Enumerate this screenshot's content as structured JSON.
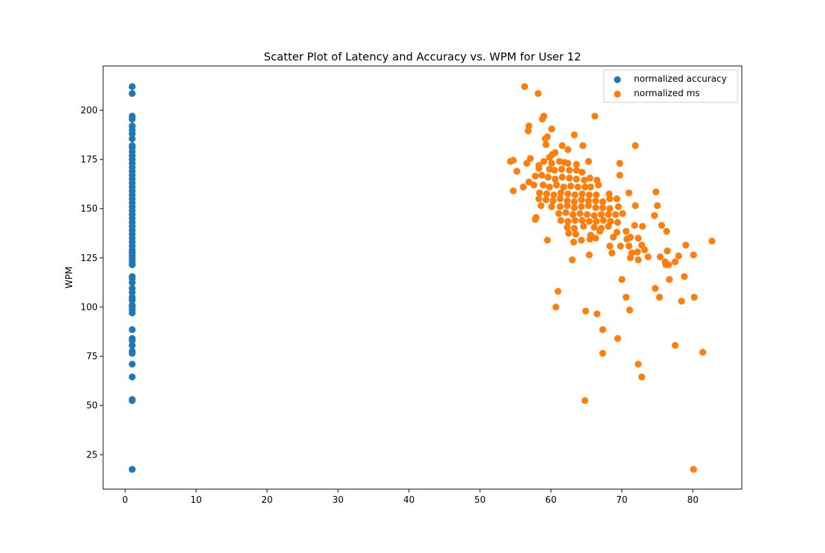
{
  "chart_data": {
    "type": "scatter",
    "title": "Scatter Plot of Latency and Accuracy vs. WPM for User 12",
    "xlabel": "",
    "ylabel": "WPM",
    "xlim": [
      -3.1,
      86.9
    ],
    "ylim": [
      7.5,
      222.5
    ],
    "xticks": [
      0,
      10,
      20,
      30,
      40,
      50,
      60,
      70,
      80
    ],
    "yticks": [
      25,
      50,
      75,
      100,
      125,
      150,
      175,
      200
    ],
    "grid": false,
    "legend_position": "top-right",
    "series": [
      {
        "name": "normalized accuracy",
        "color": "#1f77b4",
        "points": [
          [
            1,
            17.5
          ],
          [
            1,
            52.5
          ],
          [
            1,
            53
          ],
          [
            1,
            64.5
          ],
          [
            1,
            71
          ],
          [
            1,
            76.5
          ],
          [
            1,
            77.5
          ],
          [
            1,
            80.5
          ],
          [
            1,
            83
          ],
          [
            1,
            84
          ],
          [
            1,
            88.5
          ],
          [
            1,
            97
          ],
          [
            1,
            98.5
          ],
          [
            1,
            100
          ],
          [
            1,
            101
          ],
          [
            1,
            103.5
          ],
          [
            1,
            105
          ],
          [
            1,
            107.5
          ],
          [
            1,
            109.5
          ],
          [
            1,
            112.5
          ],
          [
            1,
            114.5
          ],
          [
            1,
            115.5
          ],
          [
            1,
            121.5
          ],
          [
            1,
            123
          ],
          [
            1,
            124.5
          ],
          [
            1,
            126
          ],
          [
            1,
            127.5
          ],
          [
            1,
            129
          ],
          [
            1,
            131
          ],
          [
            1,
            133
          ],
          [
            1,
            135
          ],
          [
            1,
            137
          ],
          [
            1,
            139
          ],
          [
            1,
            141
          ],
          [
            1,
            143
          ],
          [
            1,
            145
          ],
          [
            1,
            147
          ],
          [
            1,
            149
          ],
          [
            1,
            151
          ],
          [
            1,
            153
          ],
          [
            1,
            155
          ],
          [
            1,
            157
          ],
          [
            1,
            159
          ],
          [
            1,
            161
          ],
          [
            1,
            163
          ],
          [
            1,
            165
          ],
          [
            1,
            167
          ],
          [
            1,
            169
          ],
          [
            1,
            171
          ],
          [
            1,
            173
          ],
          [
            1,
            175
          ],
          [
            1,
            177
          ],
          [
            1,
            179
          ],
          [
            1,
            181
          ],
          [
            1,
            182
          ],
          [
            1,
            185.5
          ],
          [
            1,
            188
          ],
          [
            1,
            190
          ],
          [
            1,
            192
          ],
          [
            1,
            195.5
          ],
          [
            1,
            197
          ],
          [
            1,
            208.5
          ],
          [
            1,
            212
          ]
        ]
      },
      {
        "name": "normalized ms",
        "color": "#ff7f0e",
        "points": [
          [
            56.3,
            212
          ],
          [
            58.2,
            208.5
          ],
          [
            66.2,
            197
          ],
          [
            59,
            197
          ],
          [
            58.8,
            195.5
          ],
          [
            56.9,
            192
          ],
          [
            56.8,
            189.5
          ],
          [
            60.1,
            190.5
          ],
          [
            63.3,
            187.5
          ],
          [
            59.2,
            185.5
          ],
          [
            59.5,
            186.5
          ],
          [
            59.3,
            182.5
          ],
          [
            61.6,
            182
          ],
          [
            64.5,
            182
          ],
          [
            71.9,
            182
          ],
          [
            62.4,
            180
          ],
          [
            60.6,
            178.5
          ],
          [
            60.2,
            177.5
          ],
          [
            59.8,
            176
          ],
          [
            57.1,
            175.5
          ],
          [
            54.3,
            174
          ],
          [
            54.7,
            174.5
          ],
          [
            56.6,
            173
          ],
          [
            58.3,
            172
          ],
          [
            59,
            174
          ],
          [
            60.1,
            173
          ],
          [
            61.2,
            174
          ],
          [
            61.9,
            173.5
          ],
          [
            62.4,
            173
          ],
          [
            63.6,
            172.5
          ],
          [
            65.3,
            174
          ],
          [
            69.7,
            173
          ],
          [
            55.2,
            169
          ],
          [
            58.3,
            170.5
          ],
          [
            59.8,
            170
          ],
          [
            60.5,
            169.5
          ],
          [
            61.5,
            170
          ],
          [
            62.6,
            169.5
          ],
          [
            63.6,
            169.5
          ],
          [
            64.4,
            168.5
          ],
          [
            57.8,
            166.5
          ],
          [
            58.7,
            167
          ],
          [
            59.6,
            166
          ],
          [
            60.6,
            165
          ],
          [
            61.6,
            166
          ],
          [
            62.6,
            165.5
          ],
          [
            63.6,
            165
          ],
          [
            64.7,
            164.5
          ],
          [
            65.5,
            165.5
          ],
          [
            66.5,
            164.5
          ],
          [
            69.7,
            167
          ],
          [
            56.1,
            161
          ],
          [
            56.9,
            163.5
          ],
          [
            57.6,
            162
          ],
          [
            58.9,
            162
          ],
          [
            59.8,
            161
          ],
          [
            60.8,
            162
          ],
          [
            61.8,
            161
          ],
          [
            62.8,
            161.5
          ],
          [
            63.8,
            161
          ],
          [
            64.8,
            161
          ],
          [
            65.6,
            161
          ],
          [
            66.7,
            162
          ],
          [
            54.7,
            159
          ],
          [
            58.4,
            158
          ],
          [
            59.4,
            157.5
          ],
          [
            60.4,
            157
          ],
          [
            61.4,
            158
          ],
          [
            62.4,
            157.5
          ],
          [
            63.4,
            157
          ],
          [
            64.4,
            157.5
          ],
          [
            65.4,
            157
          ],
          [
            66.4,
            157
          ],
          [
            68.2,
            157.5
          ],
          [
            71,
            158
          ],
          [
            74.8,
            158.5
          ],
          [
            58.3,
            155
          ],
          [
            59.3,
            154.5
          ],
          [
            60.3,
            154
          ],
          [
            61.3,
            155
          ],
          [
            62.3,
            154
          ],
          [
            63.3,
            153.5
          ],
          [
            64.3,
            154.5
          ],
          [
            65.3,
            154
          ],
          [
            66.3,
            154
          ],
          [
            67.3,
            153.5
          ],
          [
            68.3,
            155
          ],
          [
            69.3,
            155
          ],
          [
            58.6,
            151.5
          ],
          [
            60.1,
            151
          ],
          [
            61.3,
            151
          ],
          [
            62.3,
            151.5
          ],
          [
            63.3,
            150.5
          ],
          [
            64.3,
            151
          ],
          [
            65.3,
            151.5
          ],
          [
            66.3,
            150.5
          ],
          [
            67.3,
            150.5
          ],
          [
            68.3,
            150
          ],
          [
            69.5,
            151
          ],
          [
            71.9,
            151.5
          ],
          [
            75,
            151.5
          ],
          [
            61.1,
            147.5
          ],
          [
            62.1,
            148
          ],
          [
            63.1,
            147
          ],
          [
            64.1,
            147.5
          ],
          [
            65.1,
            147
          ],
          [
            66.1,
            146.5
          ],
          [
            67.1,
            147
          ],
          [
            68.1,
            147
          ],
          [
            69.1,
            147
          ],
          [
            70.1,
            147.5
          ],
          [
            74.6,
            146.5
          ],
          [
            57.9,
            145.5
          ],
          [
            57.8,
            144.5
          ],
          [
            61.4,
            144
          ],
          [
            62.4,
            143.5
          ],
          [
            63.4,
            144
          ],
          [
            64.4,
            144
          ],
          [
            65.4,
            143.5
          ],
          [
            66.4,
            143.5
          ],
          [
            67.4,
            144
          ],
          [
            68.4,
            143.5
          ],
          [
            69.4,
            143
          ],
          [
            75.6,
            141.5
          ],
          [
            62.3,
            140.5
          ],
          [
            63.3,
            140
          ],
          [
            64.6,
            141
          ],
          [
            66.1,
            140.5
          ],
          [
            67.1,
            140
          ],
          [
            68.1,
            141
          ],
          [
            71.8,
            141.5
          ],
          [
            72.9,
            141
          ],
          [
            62.5,
            137.5
          ],
          [
            63.5,
            137
          ],
          [
            65.6,
            136.5
          ],
          [
            66.9,
            138.5
          ],
          [
            69.3,
            138
          ],
          [
            70.6,
            138.5
          ],
          [
            76.3,
            138.5
          ],
          [
            59.5,
            134
          ],
          [
            63.2,
            133
          ],
          [
            64.3,
            134
          ],
          [
            65.5,
            134.5
          ],
          [
            66.3,
            135
          ],
          [
            68.8,
            135.5
          ],
          [
            70.7,
            134.5
          ],
          [
            71.2,
            135.5
          ],
          [
            72.3,
            135
          ],
          [
            68.3,
            131
          ],
          [
            69.8,
            131
          ],
          [
            71,
            131
          ],
          [
            72.8,
            131.5
          ],
          [
            73.2,
            129
          ],
          [
            79,
            131.5
          ],
          [
            82.7,
            133.5
          ],
          [
            68.6,
            127.5
          ],
          [
            71.4,
            127.5
          ],
          [
            72.2,
            128
          ],
          [
            76.4,
            128.5
          ],
          [
            78,
            126
          ],
          [
            80.1,
            126.5
          ],
          [
            63,
            124
          ],
          [
            65.4,
            126.5
          ],
          [
            71.2,
            125
          ],
          [
            72.3,
            124
          ],
          [
            73.7,
            125.5
          ],
          [
            75.4,
            125.5
          ],
          [
            76.1,
            123
          ],
          [
            76.6,
            121.5
          ],
          [
            77.5,
            123
          ],
          [
            76.2,
            121.5
          ],
          [
            70,
            114
          ],
          [
            76.7,
            114
          ],
          [
            78.8,
            115.5
          ],
          [
            74.7,
            109.5
          ],
          [
            61,
            108
          ],
          [
            70.6,
            105
          ],
          [
            75.3,
            105
          ],
          [
            80.2,
            105
          ],
          [
            78.4,
            103
          ],
          [
            60.7,
            100
          ],
          [
            64.9,
            98
          ],
          [
            71.1,
            98.5
          ],
          [
            66.5,
            96.5
          ],
          [
            67.3,
            88.5
          ],
          [
            69.4,
            84
          ],
          [
            77.5,
            80.5
          ],
          [
            67.3,
            76.5
          ],
          [
            81.4,
            77
          ],
          [
            72.3,
            71
          ],
          [
            72.8,
            64.5
          ],
          [
            64.8,
            52.5
          ],
          [
            80.1,
            17.5
          ]
        ]
      }
    ]
  }
}
